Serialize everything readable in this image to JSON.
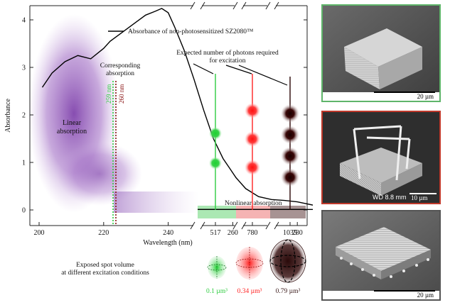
{
  "chart_data": {
    "type": "line",
    "ylabel": "Absorbance",
    "xlabel": "Wavelength (nm)",
    "ylim": [
      -0.4,
      4.3
    ],
    "y_ticks": [
      "0",
      "1",
      "2",
      "3",
      "4"
    ],
    "x_ticks": [
      "200",
      "220",
      "240",
      "260",
      "280",
      "300",
      "517",
      "780",
      "1035"
    ],
    "series": [
      {
        "name": "Absorbance of non-photosensitized SZ2080™",
        "x": [
          201,
          204,
          208,
          212,
          216,
          220,
          222,
          226,
          230,
          233,
          236,
          238,
          240,
          242,
          245,
          248,
          251,
          254,
          257,
          259,
          261,
          264,
          268,
          272,
          276,
          280,
          285,
          290,
          296,
          300,
          306,
          310,
          316
        ],
        "y": [
          2.58,
          2.88,
          3.12,
          3.25,
          3.18,
          3.4,
          3.55,
          3.75,
          3.95,
          4.1,
          4.18,
          4.24,
          4.15,
          3.85,
          3.35,
          2.75,
          2.1,
          1.5,
          1.08,
          0.88,
          0.68,
          0.45,
          0.28,
          0.22,
          0.2,
          0.17,
          0.1,
          0.06,
          0.03,
          0.02,
          0.01,
          0.01,
          0.01
        ]
      }
    ],
    "annotations": {
      "linear_absorption": "Linear absorption",
      "corresponding_absorption": "Corresponding absorption",
      "wl_259": "259 nm",
      "wl_260": "260 nm",
      "expected_photons": "Expected number of photons required for excitation",
      "nonlinear_absorption": "Nonlinear absorption",
      "exposed_spot": "Exposed spot volume at different excitation conditions"
    },
    "excitation_channels": [
      {
        "wavelength": "517",
        "photons": 2,
        "color": "#2ecc40",
        "volume": "0.1 µm³"
      },
      {
        "wavelength": "780",
        "photons": 3,
        "color": "#ff2222",
        "volume": "0.34 µm³"
      },
      {
        "wavelength": "1035",
        "photons": 4,
        "color": "#2a0606",
        "volume": "0.79 µm³"
      }
    ]
  },
  "panels": [
    {
      "border": "#5fb56a",
      "scale_label": "20 µm"
    },
    {
      "border": "#c0392b",
      "wd_label": "WD 8.8 mm",
      "scale_label": "10 µm"
    },
    {
      "border": "#555555",
      "scale_label": "20 µm"
    }
  ]
}
